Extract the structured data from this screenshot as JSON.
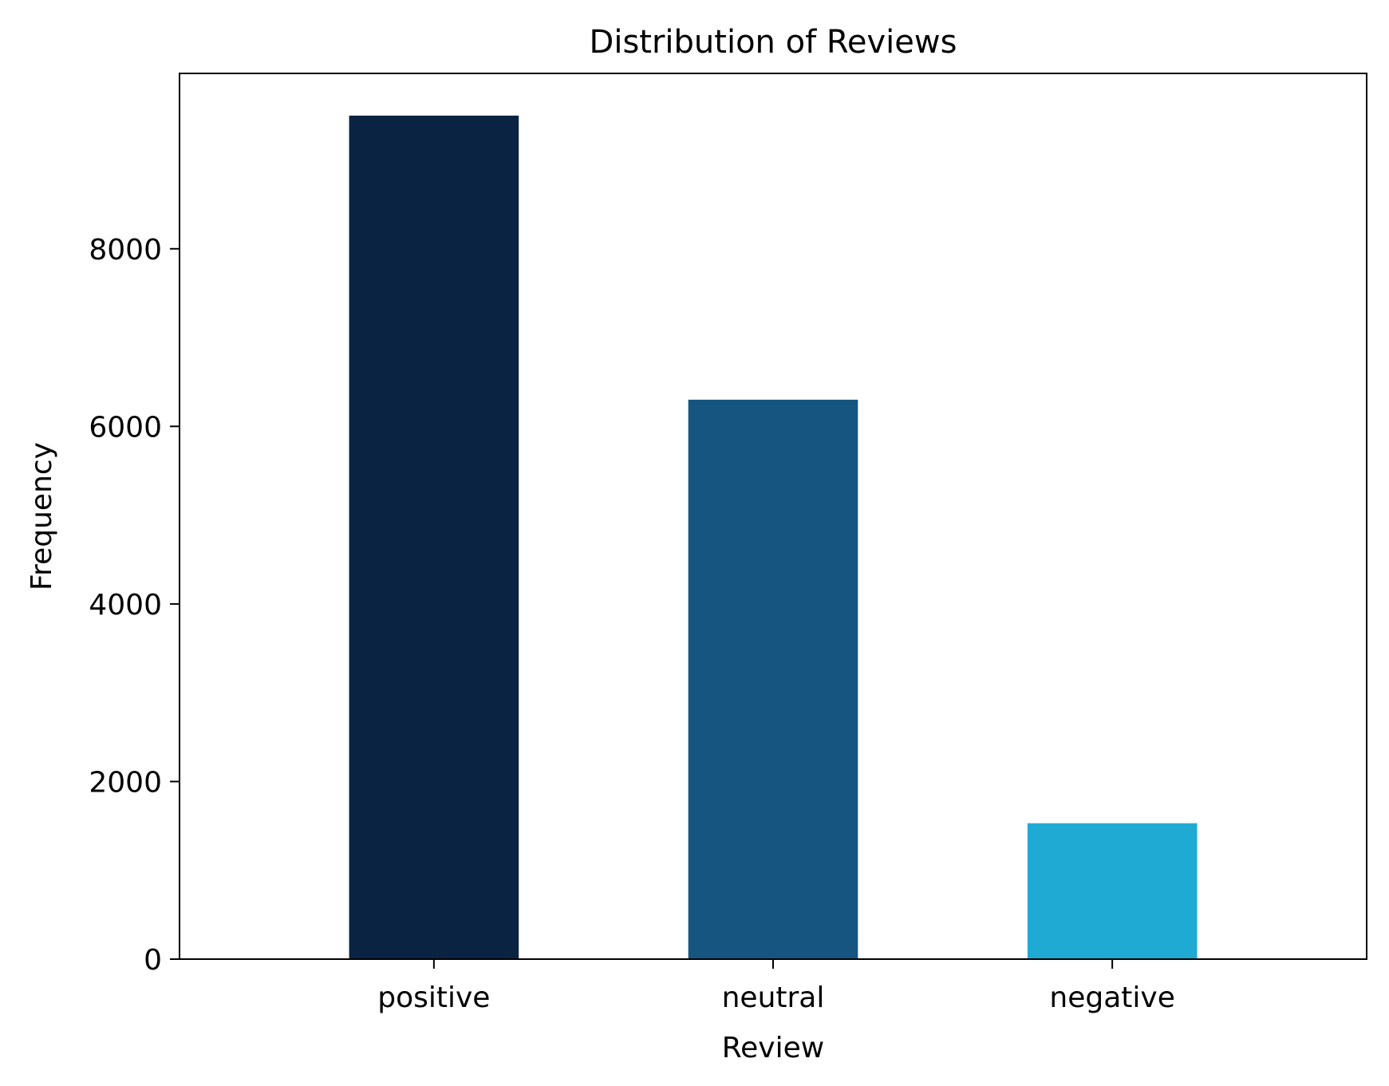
{
  "chart_data": {
    "type": "bar",
    "title": "Distribution of Reviews",
    "xlabel": "Review",
    "ylabel": "Frequency",
    "categories": [
      "positive",
      "neutral",
      "negative"
    ],
    "values": [
      9500,
      6300,
      1530
    ],
    "bar_colors": [
      "#0a2342",
      "#15557f",
      "#1faad4"
    ],
    "ylim": [
      0,
      9975
    ],
    "yticks": [
      0,
      2000,
      4000,
      6000,
      8000
    ],
    "grid": false,
    "legend": "none"
  }
}
